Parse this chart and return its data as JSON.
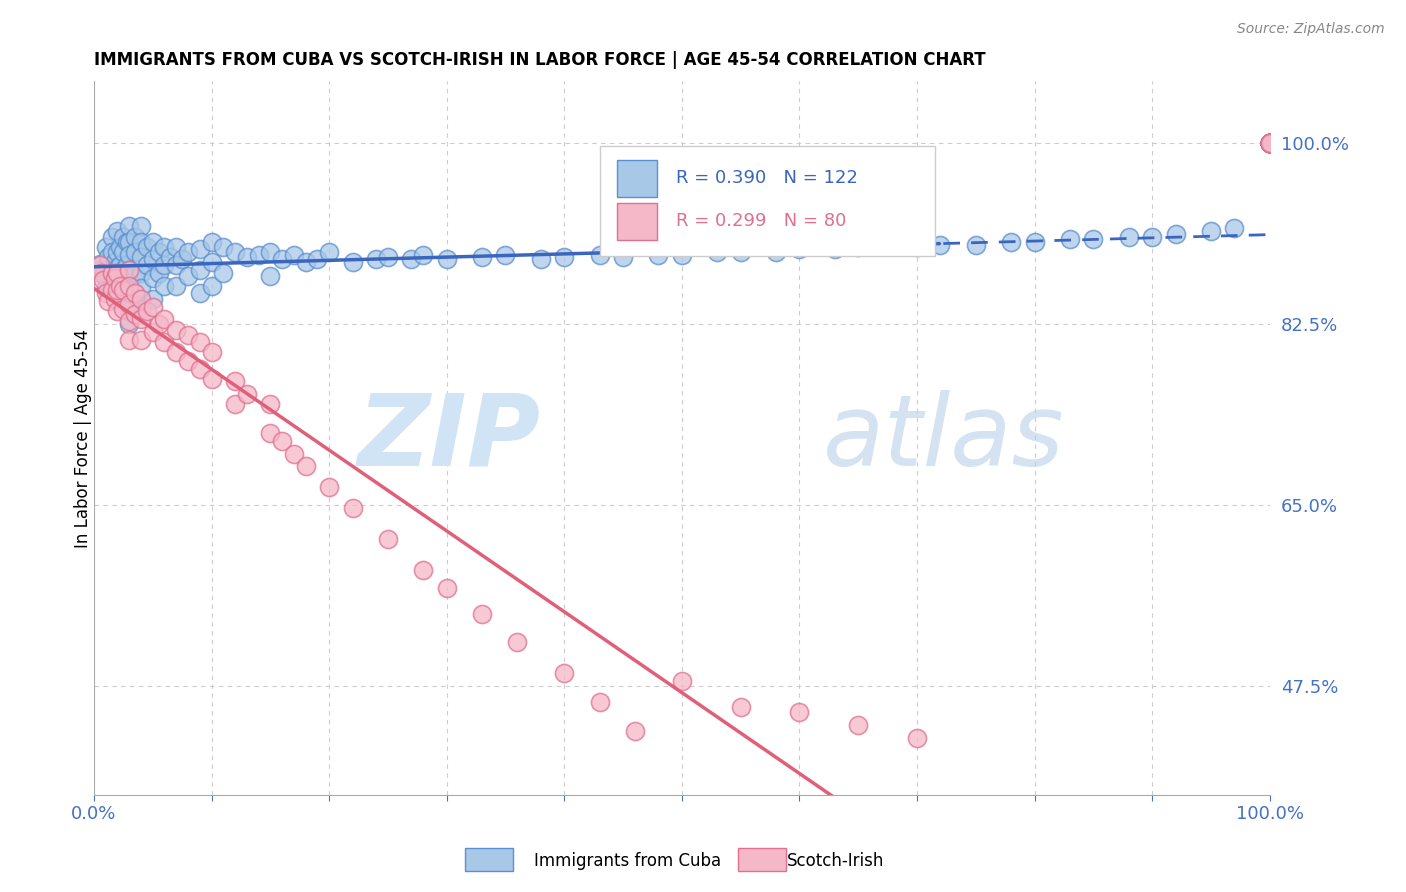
{
  "title": "IMMIGRANTS FROM CUBA VS SCOTCH-IRISH IN LABOR FORCE | AGE 45-54 CORRELATION CHART",
  "source": "Source: ZipAtlas.com",
  "ylabel": "In Labor Force | Age 45-54",
  "watermark_zip": "ZIP",
  "watermark_atlas": "atlas",
  "legend_R1": "0.390",
  "legend_N1": "122",
  "legend_R2": "0.299",
  "legend_N2": "80",
  "color_cuba_fill": "#a8c8e8",
  "color_cuba_edge": "#5b8fcf",
  "color_scotch_fill": "#f5b8c8",
  "color_scotch_edge": "#e07090",
  "color_cuba_line": "#3a66c0",
  "color_scotch_line": "#e0607a",
  "color_axis_labels": "#4472c4",
  "background_color": "#ffffff",
  "grid_color": "#cccccc",
  "ytick_positions": [
    0.475,
    0.65,
    0.825,
    1.0
  ],
  "ytick_labels": [
    "47.5%",
    "65.0%",
    "82.5%",
    "100.0%"
  ],
  "xlim": [
    0.0,
    1.0
  ],
  "ylim": [
    0.37,
    1.06
  ],
  "cuba_line_split": 0.72,
  "cuba_x": [
    0.005,
    0.005,
    0.008,
    0.01,
    0.01,
    0.01,
    0.012,
    0.015,
    0.015,
    0.015,
    0.015,
    0.018,
    0.018,
    0.02,
    0.02,
    0.02,
    0.02,
    0.02,
    0.022,
    0.022,
    0.025,
    0.025,
    0.025,
    0.025,
    0.028,
    0.028,
    0.03,
    0.03,
    0.03,
    0.03,
    0.03,
    0.03,
    0.03,
    0.03,
    0.035,
    0.035,
    0.035,
    0.035,
    0.04,
    0.04,
    0.04,
    0.04,
    0.04,
    0.04,
    0.045,
    0.045,
    0.05,
    0.05,
    0.05,
    0.05,
    0.055,
    0.055,
    0.06,
    0.06,
    0.06,
    0.065,
    0.07,
    0.07,
    0.07,
    0.075,
    0.08,
    0.08,
    0.09,
    0.09,
    0.09,
    0.1,
    0.1,
    0.1,
    0.11,
    0.11,
    0.12,
    0.13,
    0.14,
    0.15,
    0.15,
    0.16,
    0.17,
    0.18,
    0.19,
    0.2,
    0.22,
    0.24,
    0.25,
    0.27,
    0.28,
    0.3,
    0.33,
    0.35,
    0.38,
    0.4,
    0.43,
    0.45,
    0.48,
    0.5,
    0.53,
    0.55,
    0.58,
    0.6,
    0.63,
    0.65,
    0.7,
    0.72,
    0.75,
    0.78,
    0.8,
    0.83,
    0.85,
    0.88,
    0.9,
    0.92,
    0.95,
    0.97,
    1.0,
    1.0,
    1.0,
    1.0,
    1.0,
    1.0,
    1.0,
    1.0,
    1.0,
    1.0
  ],
  "cuba_y": [
    0.878,
    0.883,
    0.875,
    0.9,
    0.87,
    0.86,
    0.89,
    0.91,
    0.895,
    0.875,
    0.86,
    0.885,
    0.87,
    0.915,
    0.895,
    0.88,
    0.87,
    0.855,
    0.9,
    0.882,
    0.91,
    0.895,
    0.878,
    0.862,
    0.905,
    0.882,
    0.92,
    0.905,
    0.892,
    0.878,
    0.865,
    0.85,
    0.838,
    0.825,
    0.91,
    0.895,
    0.875,
    0.855,
    0.92,
    0.905,
    0.89,
    0.875,
    0.86,
    0.84,
    0.9,
    0.882,
    0.905,
    0.888,
    0.87,
    0.85,
    0.895,
    0.875,
    0.9,
    0.882,
    0.862,
    0.89,
    0.9,
    0.882,
    0.862,
    0.888,
    0.895,
    0.872,
    0.898,
    0.878,
    0.855,
    0.905,
    0.885,
    0.862,
    0.9,
    0.875,
    0.895,
    0.89,
    0.892,
    0.895,
    0.872,
    0.888,
    0.892,
    0.885,
    0.888,
    0.895,
    0.885,
    0.888,
    0.89,
    0.888,
    0.892,
    0.888,
    0.89,
    0.892,
    0.888,
    0.89,
    0.892,
    0.89,
    0.892,
    0.892,
    0.895,
    0.895,
    0.895,
    0.898,
    0.898,
    0.9,
    0.9,
    0.902,
    0.902,
    0.905,
    0.905,
    0.908,
    0.908,
    0.91,
    0.91,
    0.912,
    0.915,
    0.918,
    1.0,
    1.0,
    1.0,
    1.0,
    1.0,
    1.0,
    1.0,
    1.0,
    1.0,
    1.0
  ],
  "scotch_x": [
    0.005,
    0.006,
    0.008,
    0.01,
    0.012,
    0.015,
    0.015,
    0.018,
    0.018,
    0.02,
    0.02,
    0.02,
    0.022,
    0.025,
    0.025,
    0.03,
    0.03,
    0.03,
    0.03,
    0.03,
    0.035,
    0.035,
    0.04,
    0.04,
    0.04,
    0.045,
    0.05,
    0.05,
    0.055,
    0.06,
    0.06,
    0.07,
    0.07,
    0.08,
    0.08,
    0.09,
    0.09,
    0.1,
    0.1,
    0.12,
    0.12,
    0.13,
    0.15,
    0.15,
    0.16,
    0.17,
    0.18,
    0.2,
    0.22,
    0.25,
    0.28,
    0.3,
    0.33,
    0.36,
    0.4,
    0.43,
    0.46,
    0.5,
    0.55,
    0.6,
    0.65,
    0.7,
    1.0,
    1.0,
    1.0,
    1.0,
    1.0,
    1.0,
    1.0,
    1.0,
    1.0,
    1.0,
    1.0,
    1.0,
    1.0,
    1.0,
    1.0,
    1.0,
    1.0,
    1.0
  ],
  "scotch_y": [
    0.882,
    0.875,
    0.868,
    0.855,
    0.848,
    0.875,
    0.858,
    0.87,
    0.85,
    0.875,
    0.858,
    0.838,
    0.862,
    0.858,
    0.84,
    0.878,
    0.862,
    0.845,
    0.828,
    0.81,
    0.855,
    0.835,
    0.85,
    0.83,
    0.81,
    0.838,
    0.842,
    0.818,
    0.825,
    0.83,
    0.808,
    0.82,
    0.798,
    0.815,
    0.79,
    0.808,
    0.782,
    0.798,
    0.772,
    0.77,
    0.748,
    0.758,
    0.748,
    0.72,
    0.712,
    0.7,
    0.688,
    0.668,
    0.648,
    0.618,
    0.588,
    0.57,
    0.545,
    0.518,
    0.488,
    0.46,
    0.432,
    0.48,
    0.455,
    0.45,
    0.438,
    0.425,
    1.0,
    1.0,
    1.0,
    1.0,
    1.0,
    1.0,
    1.0,
    1.0,
    1.0,
    1.0,
    1.0,
    1.0,
    1.0,
    1.0,
    1.0,
    1.0,
    1.0,
    1.0
  ]
}
